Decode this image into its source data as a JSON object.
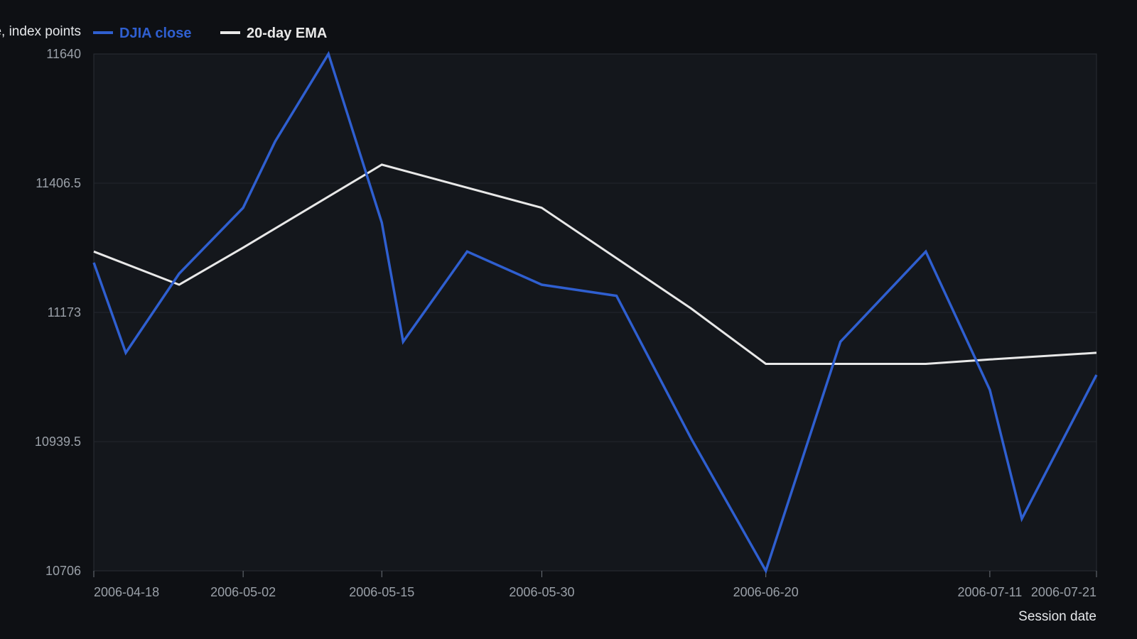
{
  "chart_data": {
    "type": "line",
    "title": "",
    "xlabel": "Session date",
    "ylabel": "Close, index points",
    "x": [
      "2006-04-18",
      "2006-04-21",
      "2006-04-26",
      "2006-05-02",
      "2006-05-05",
      "2006-05-10",
      "2006-05-15",
      "2006-05-17",
      "2006-05-23",
      "2006-05-30",
      "2006-06-06",
      "2006-06-13",
      "2006-06-20",
      "2006-06-27",
      "2006-07-05",
      "2006-07-11",
      "2006-07-14",
      "2006-07-21"
    ],
    "series": [
      {
        "name": "DJIA close",
        "color": "#2f5fd0",
        "values": [
          11263,
          11100,
          11243,
          11362,
          11482,
          11640,
          11335,
          11120,
          11283,
          11223,
          11203,
          10945,
          10706,
          11120,
          11283,
          11033,
          10800,
          11060
        ]
      },
      {
        "name": "20-day EMA",
        "color": "#e8e8e8",
        "values": [
          11283,
          null,
          11223,
          11290,
          null,
          null,
          11440,
          null,
          null,
          11362,
          null,
          11180,
          11080,
          null,
          11080,
          11088,
          null,
          11100
        ]
      }
    ],
    "yticks": [
      "11640",
      "11406.5",
      "11173",
      "10939.5",
      "10706"
    ],
    "ylim": [
      10706,
      11640
    ],
    "xticks": [
      "2006-04-18",
      "2006-05-02",
      "2006-05-15",
      "2006-05-30",
      "2006-06-20",
      "2006-07-11",
      "2006-07-21"
    ],
    "grid": true,
    "legend_position": "top-left"
  }
}
